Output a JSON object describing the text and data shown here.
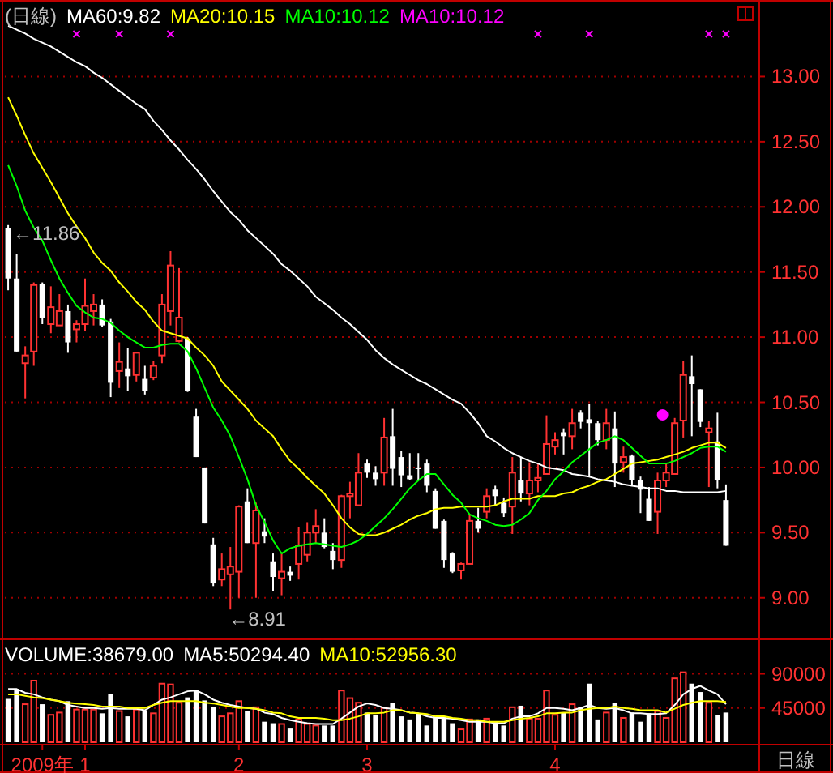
{
  "chart_data": [
    {
      "type": "candlestick",
      "title": "(日線)",
      "legend": "top left",
      "grid": "y",
      "tick_labels": "y",
      "categories": [
        null,
        null,
        null,
        null,
        null,
        null,
        null,
        null,
        null,
        null,
        null,
        null,
        null,
        null,
        null,
        null,
        null,
        null,
        null,
        null,
        null,
        null,
        null,
        null,
        null,
        null,
        null,
        null,
        null,
        null,
        null,
        null,
        null,
        null,
        null,
        null,
        null,
        null,
        null,
        null,
        null,
        null,
        null,
        null,
        null,
        null,
        null,
        null,
        null,
        null,
        null,
        null,
        null,
        null,
        null,
        null,
        null,
        null,
        null,
        null,
        null,
        null,
        null,
        null,
        null,
        null,
        null,
        null,
        null,
        null,
        null,
        null,
        null,
        null,
        null,
        null,
        null,
        null,
        null,
        null,
        null,
        null,
        null,
        null,
        null
      ],
      "ohlc": [
        [
          11.84,
          11.86,
          11.36,
          11.45
        ],
        [
          11.45,
          11.64,
          10.89,
          10.89
        ],
        [
          10.8,
          10.93,
          10.53,
          10.86
        ],
        [
          10.89,
          11.42,
          10.78,
          11.4
        ],
        [
          11.41,
          11.42,
          11.1,
          11.15
        ],
        [
          11.1,
          11.39,
          11.03,
          11.23
        ],
        [
          11.09,
          11.33,
          11.09,
          11.2
        ],
        [
          11.2,
          11.25,
          10.88,
          10.96
        ],
        [
          11.06,
          11.13,
          10.96,
          11.1
        ],
        [
          11.1,
          11.45,
          11.05,
          11.24
        ],
        [
          11.2,
          11.33,
          11.09,
          11.25
        ],
        [
          11.25,
          11.29,
          11.08,
          11.09
        ],
        [
          11.12,
          11.14,
          10.54,
          10.65
        ],
        [
          10.74,
          10.96,
          10.61,
          10.81
        ],
        [
          10.76,
          10.92,
          10.59,
          10.7
        ],
        [
          10.71,
          10.88,
          10.66,
          10.88
        ],
        [
          10.68,
          10.78,
          10.56,
          10.59
        ],
        [
          10.69,
          10.82,
          10.67,
          10.78
        ],
        [
          10.86,
          11.33,
          10.8,
          11.25
        ],
        [
          11.2,
          11.66,
          11.09,
          11.55
        ],
        [
          10.97,
          11.53,
          10.96,
          11.15
        ],
        [
          10.99,
          11.0,
          10.58,
          10.59
        ],
        [
          10.39,
          10.45,
          10.08,
          10.08
        ],
        [
          10.0,
          10.0,
          9.57,
          9.57
        ],
        [
          9.41,
          9.46,
          9.09,
          9.11
        ],
        [
          9.14,
          9.34,
          9.09,
          9.22
        ],
        [
          9.18,
          9.39,
          8.91,
          9.24
        ],
        [
          9.2,
          9.71,
          9.0,
          9.7
        ],
        [
          9.74,
          9.84,
          9.42,
          9.42
        ],
        [
          9.42,
          9.73,
          9.0,
          9.67
        ],
        [
          9.51,
          9.61,
          9.42,
          9.47
        ],
        [
          9.28,
          9.34,
          9.05,
          9.16
        ],
        [
          9.15,
          9.34,
          9.02,
          9.2
        ],
        [
          9.2,
          9.24,
          9.13,
          9.17
        ],
        [
          9.26,
          9.54,
          9.14,
          9.4
        ],
        [
          9.33,
          9.58,
          9.28,
          9.5
        ],
        [
          9.5,
          9.68,
          9.42,
          9.55
        ],
        [
          9.5,
          9.61,
          9.38,
          9.39
        ],
        [
          9.36,
          9.42,
          9.22,
          9.29
        ],
        [
          9.29,
          9.79,
          9.23,
          9.78
        ],
        [
          9.78,
          9.89,
          9.61,
          9.8
        ],
        [
          9.71,
          10.11,
          9.71,
          9.96
        ],
        [
          10.03,
          10.06,
          9.92,
          9.96
        ],
        [
          9.96,
          10.01,
          9.86,
          9.91
        ],
        [
          9.96,
          10.38,
          9.86,
          10.23
        ],
        [
          10.24,
          10.45,
          9.86,
          9.99
        ],
        [
          10.08,
          10.13,
          9.85,
          9.94
        ],
        [
          9.94,
          10.11,
          9.9,
          9.91
        ],
        [
          10.0,
          10.11,
          9.9,
          9.99
        ],
        [
          10.03,
          10.06,
          9.81,
          9.86
        ],
        [
          9.82,
          9.84,
          9.53,
          9.53
        ],
        [
          9.59,
          9.6,
          9.23,
          9.29
        ],
        [
          9.34,
          9.35,
          9.19,
          9.2
        ],
        [
          9.21,
          9.27,
          9.14,
          9.26
        ],
        [
          9.26,
          9.64,
          9.26,
          9.59
        ],
        [
          9.59,
          9.69,
          9.5,
          9.53
        ],
        [
          9.66,
          9.84,
          9.61,
          9.78
        ],
        [
          9.83,
          9.86,
          9.71,
          9.78
        ],
        [
          9.73,
          9.77,
          9.62,
          9.65
        ],
        [
          9.7,
          10.08,
          9.49,
          9.96
        ],
        [
          9.9,
          10.08,
          9.74,
          9.8
        ],
        [
          9.8,
          10.04,
          9.71,
          9.9
        ],
        [
          9.9,
          10.03,
          9.81,
          9.92
        ],
        [
          9.95,
          10.4,
          9.95,
          10.18
        ],
        [
          10.16,
          10.27,
          10.1,
          10.21
        ],
        [
          10.27,
          10.3,
          10.1,
          10.24
        ],
        [
          10.24,
          10.45,
          10.14,
          10.34
        ],
        [
          10.42,
          10.44,
          10.3,
          10.35
        ],
        [
          10.37,
          10.49,
          9.93,
          10.34
        ],
        [
          10.34,
          10.36,
          10.17,
          10.21
        ],
        [
          10.21,
          10.45,
          10.14,
          10.34
        ],
        [
          10.3,
          10.43,
          9.85,
          10.03
        ],
        [
          10.04,
          10.16,
          9.96,
          10.08
        ],
        [
          10.09,
          10.1,
          9.86,
          9.9
        ],
        [
          9.9,
          9.93,
          9.65,
          9.83
        ],
        [
          9.76,
          9.85,
          9.59,
          9.59
        ],
        [
          9.66,
          9.96,
          9.49,
          9.9
        ],
        [
          9.9,
          10.03,
          9.85,
          9.96
        ],
        [
          9.95,
          10.38,
          9.95,
          10.34
        ],
        [
          10.36,
          10.82,
          10.23,
          10.71
        ],
        [
          10.7,
          10.86,
          10.24,
          10.64
        ],
        [
          10.6,
          10.6,
          10.31,
          10.35
        ],
        [
          10.27,
          10.36,
          9.85,
          10.3
        ],
        [
          10.2,
          10.42,
          9.84,
          9.9
        ],
        [
          9.75,
          9.87,
          9.4,
          9.4
        ]
      ],
      "colors": [
        "#ffffff",
        "#ffffff",
        "#ff3232",
        "#ff3232",
        "#ffffff",
        "#ff3232",
        "#ff3232",
        "#ffffff",
        "#ff3232",
        "#ff3232",
        "#ff3232",
        "#ffffff",
        "#ffffff",
        "#ff3232",
        "#ffffff",
        "#ff3232",
        "#ffffff",
        "#ff3232",
        "#ff3232",
        "#ff3232",
        "#ff3232",
        "#ffffff",
        "#ffffff",
        "#ffffff",
        "#ffffff",
        "#ff3232",
        "#ff3232",
        "#ff3232",
        "#ffffff",
        "#ff3232",
        "#ffffff",
        "#ffffff",
        "#ff3232",
        "#ffffff",
        "#ff3232",
        "#ff3232",
        "#ff3232",
        "#ffffff",
        "#ffffff",
        "#ff3232",
        "#ff3232",
        "#ff3232",
        "#ffffff",
        "#ffffff",
        "#ff3232",
        "#ffffff",
        "#ffffff",
        "#ffffff",
        "#ffffff",
        "#ffffff",
        "#ffffff",
        "#ffffff",
        "#ffffff",
        "#ff3232",
        "#ff3232",
        "#ffffff",
        "#ff3232",
        "#ffffff",
        "#ffffff",
        "#ff3232",
        "#ffffff",
        "#ff3232",
        "#ff3232",
        "#ff3232",
        "#ff3232",
        "#ffffff",
        "#ff3232",
        "#ffffff",
        "#ffffff",
        "#ffffff",
        "#ff3232",
        "#ffffff",
        "#ff3232",
        "#ffffff",
        "#ffffff",
        "#ffffff",
        "#ff3232",
        "#ff3232",
        "#ff3232",
        "#ff3232",
        "#ffffff",
        "#ffffff",
        "#ff3232",
        "#ffffff",
        "#ffffff"
      ],
      "series": [
        {
          "name": "MA60:9.82",
          "type": "line",
          "color": "#ffffff",
          "values": [
            13.39,
            13.36,
            13.33,
            13.29,
            13.26,
            13.23,
            13.19,
            13.15,
            13.11,
            13.08,
            13.03,
            12.99,
            12.94,
            12.89,
            12.84,
            12.79,
            12.75,
            12.66,
            12.59,
            12.51,
            12.44,
            12.36,
            12.29,
            12.21,
            12.12,
            12.04,
            11.96,
            11.9,
            11.82,
            11.76,
            11.7,
            11.64,
            11.56,
            11.51,
            11.45,
            11.39,
            11.31,
            11.26,
            11.21,
            11.15,
            11.1,
            11.04,
            10.98,
            10.9,
            10.84,
            10.79,
            10.75,
            10.71,
            10.67,
            10.64,
            10.6,
            10.56,
            10.52,
            10.49,
            10.42,
            10.34,
            10.24,
            10.2,
            10.15,
            10.11,
            10.08,
            10.05,
            10.03,
            10.0,
            9.99,
            9.98,
            9.95,
            9.94,
            9.93,
            9.91,
            9.9,
            9.89,
            9.87,
            9.86,
            9.85,
            9.84,
            9.84,
            9.82,
            9.82,
            9.81,
            9.81,
            9.81,
            9.81,
            9.81,
            9.82
          ]
        },
        {
          "name": "MA20:10.15",
          "type": "line",
          "color": "#ffff00",
          "values": [
            12.84,
            12.7,
            12.55,
            12.41,
            12.3,
            12.19,
            12.07,
            11.95,
            11.85,
            11.76,
            11.65,
            11.57,
            11.51,
            11.42,
            11.35,
            11.27,
            11.21,
            11.12,
            11.05,
            11.03,
            11.01,
            10.99,
            10.92,
            10.86,
            10.78,
            10.66,
            10.59,
            10.52,
            10.45,
            10.36,
            10.3,
            10.24,
            10.14,
            10.05,
            9.99,
            9.92,
            9.86,
            9.8,
            9.71,
            9.61,
            9.54,
            9.49,
            9.48,
            9.48,
            9.5,
            9.53,
            9.56,
            9.6,
            9.63,
            9.65,
            9.68,
            9.69,
            9.69,
            9.7,
            9.7,
            9.7,
            9.7,
            9.71,
            9.74,
            9.76,
            9.76,
            9.76,
            9.78,
            9.78,
            9.78,
            9.8,
            9.81,
            9.84,
            9.86,
            9.89,
            9.91,
            9.95,
            9.99,
            10.03,
            10.04,
            10.05,
            10.06,
            10.08,
            10.1,
            10.12,
            10.15,
            10.17,
            10.19,
            10.19,
            10.15
          ]
        },
        {
          "name": "MA10:10.12",
          "type": "line",
          "color": "#00ff00",
          "values": [
            12.32,
            12.16,
            11.97,
            11.84,
            11.74,
            11.59,
            11.45,
            11.34,
            11.24,
            11.19,
            11.15,
            11.14,
            11.11,
            11.05,
            11.0,
            10.96,
            10.92,
            10.92,
            10.94,
            10.95,
            10.95,
            10.89,
            10.76,
            10.61,
            10.46,
            10.36,
            10.24,
            10.08,
            9.91,
            9.71,
            9.58,
            9.44,
            9.34,
            9.38,
            9.4,
            9.41,
            9.42,
            9.41,
            9.4,
            9.39,
            9.41,
            9.44,
            9.49,
            9.55,
            9.61,
            9.68,
            9.76,
            9.84,
            9.9,
            9.95,
            9.95,
            9.87,
            9.79,
            9.73,
            9.64,
            9.61,
            9.59,
            9.56,
            9.55,
            9.56,
            9.6,
            9.65,
            9.75,
            9.82,
            9.91,
            9.97,
            10.04,
            10.09,
            10.14,
            10.19,
            10.21,
            10.24,
            10.21,
            10.15,
            10.09,
            10.03,
            10.03,
            10.03,
            10.05,
            10.08,
            10.11,
            10.15,
            10.16,
            10.16,
            10.12
          ]
        }
      ],
      "ylim": [
        8.7,
        13.55
      ],
      "yticks": [
        {
          "value": 9,
          "label": "9.00"
        },
        {
          "value": 9.5,
          "label": "9.50"
        },
        {
          "value": 10,
          "label": "10.00"
        },
        {
          "value": 10.5,
          "label": "10.50"
        },
        {
          "value": 11,
          "label": "11.00"
        },
        {
          "value": 11.5,
          "label": "11.50"
        },
        {
          "value": 12,
          "label": "12.00"
        },
        {
          "value": 12.5,
          "label": "12.50"
        },
        {
          "value": 13,
          "label": "13.00"
        }
      ],
      "annotations": [
        "MA10:10.12",
        "←11.86",
        "←8.91"
      ]
    },
    {
      "type": "bar",
      "legend": "top left",
      "grid": "y",
      "xlabel": "日線",
      "categories": [
        null,
        null,
        null,
        null,
        "2009年",
        null,
        null,
        null,
        null,
        "1",
        null,
        null,
        null,
        null,
        null,
        null,
        null,
        null,
        null,
        null,
        null,
        null,
        null,
        null,
        null,
        null,
        null,
        "2",
        null,
        null,
        null,
        null,
        null,
        null,
        null,
        null,
        null,
        null,
        null,
        null,
        null,
        null,
        "3",
        null,
        null,
        null,
        null,
        null,
        null,
        null,
        null,
        null,
        null,
        null,
        null,
        null,
        null,
        null,
        null,
        null,
        null,
        null,
        null,
        null,
        "4",
        null,
        null,
        null,
        null,
        null,
        null,
        null,
        null,
        null,
        null,
        null,
        null,
        null,
        null,
        null,
        null,
        null,
        null,
        null,
        null
      ],
      "series": [
        {
          "name": "VOLUME:38679.00",
          "type": "bar",
          "colors": [
            "#ffffff",
            "#ffffff",
            "#ff3232",
            "#ff3232",
            "#ffffff",
            "#ff3232",
            "#ff3232",
            "#ffffff",
            "#ff3232",
            "#ff3232",
            "#ff3232",
            "#ffffff",
            "#ffffff",
            "#ff3232",
            "#ffffff",
            "#ff3232",
            "#ffffff",
            "#ff3232",
            "#ff3232",
            "#ff3232",
            "#ff3232",
            "#ffffff",
            "#ffffff",
            "#ffffff",
            "#ffffff",
            "#ff3232",
            "#ff3232",
            "#ff3232",
            "#ffffff",
            "#ff3232",
            "#ffffff",
            "#ffffff",
            "#ff3232",
            "#ffffff",
            "#ff3232",
            "#ff3232",
            "#ff3232",
            "#ffffff",
            "#ffffff",
            "#ff3232",
            "#ff3232",
            "#ff3232",
            "#ffffff",
            "#ffffff",
            "#ff3232",
            "#ffffff",
            "#ffffff",
            "#ffffff",
            "#ffffff",
            "#ffffff",
            "#ffffff",
            "#ffffff",
            "#ffffff",
            "#ff3232",
            "#ff3232",
            "#ffffff",
            "#ff3232",
            "#ffffff",
            "#ffffff",
            "#ff3232",
            "#ffffff",
            "#ff3232",
            "#ff3232",
            "#ff3232",
            "#ff3232",
            "#ffffff",
            "#ff3232",
            "#ffffff",
            "#ffffff",
            "#ffffff",
            "#ff3232",
            "#ffffff",
            "#ff3232",
            "#ffffff",
            "#ffffff",
            "#ffffff",
            "#ff3232",
            "#ff3232",
            "#ff3232",
            "#ff3232",
            "#ffffff",
            "#ffffff",
            "#ff3232",
            "#ffffff",
            "#ffffff"
          ],
          "values": [
            57000,
            70000,
            50000,
            81000,
            50000,
            36000,
            39000,
            54000,
            43000,
            43000,
            43000,
            38000,
            63000,
            41000,
            34000,
            43000,
            41000,
            38000,
            77000,
            76000,
            52000,
            59000,
            68000,
            55000,
            46000,
            34000,
            38000,
            54000,
            41000,
            46000,
            27000,
            25000,
            24000,
            18000,
            30000,
            24000,
            22000,
            22000,
            22000,
            68000,
            58000,
            52000,
            39000,
            36000,
            45000,
            52000,
            34000,
            30000,
            38000,
            22000,
            34000,
            34000,
            25000,
            17000,
            30000,
            30000,
            31000,
            27000,
            22000,
            46000,
            48000,
            31000,
            31000,
            68000,
            36000,
            39000,
            50000,
            46000,
            77000,
            30000,
            39000,
            52000,
            32000,
            39000,
            27000,
            38000,
            41000,
            32000,
            84000,
            92000,
            77000,
            66000,
            52000,
            36000,
            39000
          ]
        },
        {
          "name": "MA5:50294.40",
          "type": "line",
          "color": "#ffffff",
          "values": [
            70000,
            70000,
            65000,
            63000,
            59000,
            56000,
            54000,
            49000,
            47000,
            45000,
            45000,
            44000,
            45000,
            44000,
            44000,
            44000,
            42000,
            49000,
            56000,
            59000,
            63000,
            67000,
            68000,
            63000,
            56000,
            52000,
            49000,
            47000,
            45000,
            44000,
            39000,
            37000,
            32000,
            29000,
            27000,
            25000,
            24000,
            24000,
            24000,
            31000,
            39000,
            47000,
            51000,
            49000,
            45000,
            44000,
            42000,
            39000,
            38000,
            34000,
            32000,
            32000,
            31000,
            29000,
            27000,
            27000,
            27000,
            25000,
            25000,
            31000,
            34000,
            34000,
            38000,
            45000,
            45000,
            44000,
            42000,
            45000,
            49000,
            45000,
            44000,
            45000,
            42000,
            38000,
            38000,
            37000,
            37000,
            38000,
            49000,
            63000,
            70000,
            74000,
            68000,
            63000,
            50000
          ]
        },
        {
          "name": "MA10:52956.30",
          "type": "line",
          "color": "#ffff00",
          "values": [
            63000,
            63000,
            61000,
            59000,
            58000,
            56000,
            54000,
            52000,
            51000,
            50000,
            49000,
            47000,
            47000,
            47000,
            45000,
            45000,
            45000,
            49000,
            52000,
            54000,
            54000,
            54000,
            54000,
            52000,
            51000,
            49000,
            47000,
            45000,
            45000,
            44000,
            42000,
            39000,
            38000,
            34000,
            32000,
            32000,
            32000,
            31000,
            29000,
            29000,
            31000,
            34000,
            38000,
            38000,
            39000,
            42000,
            42000,
            39000,
            38000,
            37000,
            34000,
            34000,
            32000,
            31000,
            29000,
            29000,
            27000,
            27000,
            27000,
            29000,
            31000,
            32000,
            34000,
            38000,
            38000,
            39000,
            39000,
            42000,
            44000,
            45000,
            45000,
            47000,
            45000,
            44000,
            42000,
            42000,
            42000,
            39000,
            44000,
            49000,
            52000,
            54000,
            54000,
            54000,
            53000
          ]
        }
      ],
      "ylim": [
        0,
        130000
      ],
      "yticks": [
        45000,
        90000
      ]
    }
  ]
}
